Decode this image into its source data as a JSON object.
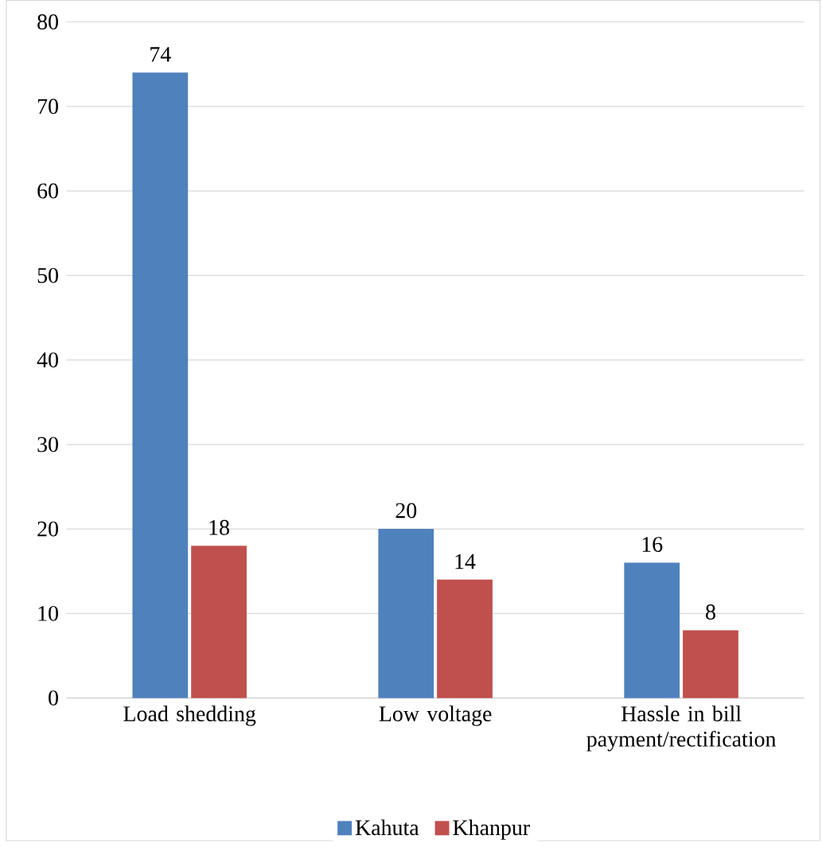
{
  "chart_data": {
    "type": "bar",
    "categories": [
      "Load shedding",
      "Low voltage",
      "Hassle in bill payment/rectification"
    ],
    "series": [
      {
        "name": "Kahuta",
        "color": "#4f81bd",
        "values": [
          74,
          20,
          16
        ]
      },
      {
        "name": "Khanpur",
        "color": "#c0504d",
        "values": [
          18,
          14,
          8
        ]
      }
    ],
    "ylim": [
      0,
      80
    ],
    "yticks": [
      0,
      10,
      20,
      30,
      40,
      50,
      60,
      70,
      80
    ],
    "grid": "y",
    "legend": "bottom",
    "data_labels": true
  }
}
